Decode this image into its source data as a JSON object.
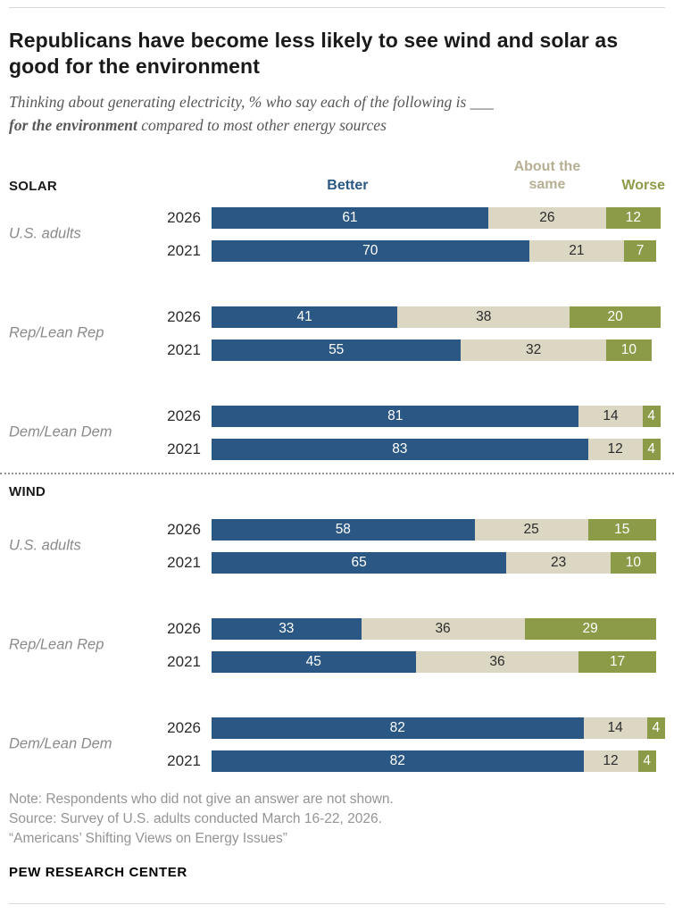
{
  "header": {
    "title": "Republicans have become less likely to see wind and solar as good for the environment",
    "subtitle_prefix": "Thinking about generating electricity, % who say each of the following is ___",
    "subtitle_bold": "for the environment",
    "subtitle_suffix": " compared to most other energy sources"
  },
  "legend": {
    "better": "Better",
    "about_line1": "About the",
    "about_line2": "same",
    "worse": "Worse"
  },
  "colors": {
    "better": "#2A5783",
    "same": "#DBD7C3",
    "worse": "#8C9B47",
    "legend_better_text": "#2A5783",
    "legend_same_text": "#B7AF93",
    "legend_worse_text": "#8C9B47"
  },
  "chart_data": {
    "type": "bar",
    "orientation": "horizontal",
    "stacked": true,
    "unit": "%",
    "x_range": [
      0,
      100
    ],
    "series_names": [
      "Better",
      "About the same",
      "Worse"
    ],
    "sections": [
      {
        "label": "SOLAR",
        "groups": [
          {
            "label": "U.S. adults",
            "rows": [
              {
                "year": "2026",
                "values": [
                  61,
                  26,
                  12
                ]
              },
              {
                "year": "2021",
                "values": [
                  70,
                  21,
                  7
                ]
              }
            ]
          },
          {
            "label": "Rep/Lean Rep",
            "rows": [
              {
                "year": "2026",
                "values": [
                  41,
                  38,
                  20
                ]
              },
              {
                "year": "2021",
                "values": [
                  55,
                  32,
                  10
                ]
              }
            ]
          },
          {
            "label": "Dem/Lean Dem",
            "rows": [
              {
                "year": "2026",
                "values": [
                  81,
                  14,
                  4
                ]
              },
              {
                "year": "2021",
                "values": [
                  83,
                  12,
                  4
                ]
              }
            ]
          }
        ]
      },
      {
        "label": "WIND",
        "groups": [
          {
            "label": "U.S. adults",
            "rows": [
              {
                "year": "2026",
                "values": [
                  58,
                  25,
                  15
                ]
              },
              {
                "year": "2021",
                "values": [
                  65,
                  23,
                  10
                ]
              }
            ]
          },
          {
            "label": "Rep/Lean Rep",
            "rows": [
              {
                "year": "2026",
                "values": [
                  33,
                  36,
                  29
                ]
              },
              {
                "year": "2021",
                "values": [
                  45,
                  36,
                  17
                ]
              }
            ]
          },
          {
            "label": "Dem/Lean Dem",
            "rows": [
              {
                "year": "2026",
                "values": [
                  82,
                  14,
                  4
                ]
              },
              {
                "year": "2021",
                "values": [
                  82,
                  12,
                  4
                ]
              }
            ]
          }
        ]
      }
    ]
  },
  "notes": {
    "line1": "Note: Respondents who did not give an answer are not shown.",
    "line2": "Source: Survey of U.S. adults conducted March 16-22, 2026.",
    "line3": "“Americans’ Shifting Views on Energy Issues”"
  },
  "footer": {
    "brand": "PEW RESEARCH CENTER"
  }
}
